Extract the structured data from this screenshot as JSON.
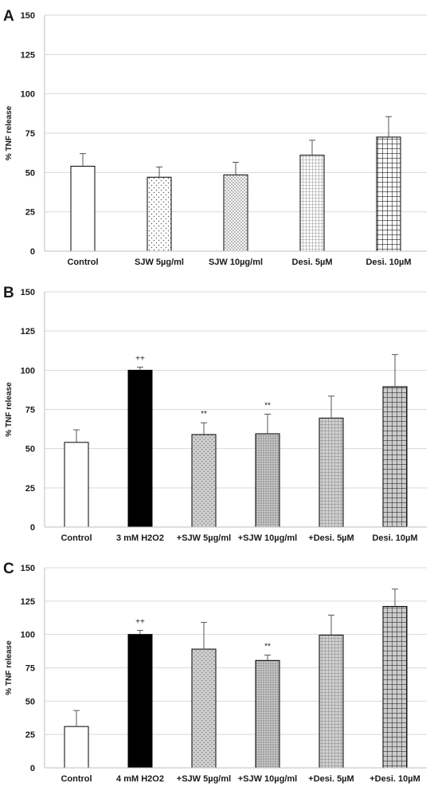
{
  "chart_data": [
    {
      "type": "bar",
      "panel_label": "A",
      "ylabel": "% TNF release",
      "ylim": [
        0,
        150
      ],
      "yticks": [
        "0",
        "25",
        "50",
        "75",
        "100",
        "125",
        "150"
      ],
      "grid": true,
      "categories": [
        "Control",
        "SJW 5µg/ml",
        "SJW 10µg/ml",
        "Desi. 5µM",
        "Desi. 10µM"
      ],
      "values": [
        54,
        47,
        48.5,
        61,
        72.5
      ],
      "errors": [
        8,
        6.5,
        8,
        9.5,
        13
      ],
      "patterns": [
        "white",
        "sparse-dots",
        "dense-dots",
        "grid-small",
        "grid-large"
      ],
      "annotations": [
        "",
        "",
        "",
        "",
        ""
      ]
    },
    {
      "type": "bar",
      "panel_label": "B",
      "ylabel": "% TNF release",
      "ylim": [
        0,
        150
      ],
      "yticks": [
        "0",
        "25",
        "50",
        "75",
        "100",
        "125",
        "150"
      ],
      "grid": true,
      "categories": [
        "Control",
        "3 mM H2O2",
        "+SJW 5µg/ml",
        "+SJW 10µg/ml",
        "+Desi. 5µM",
        "Desi. 10µM"
      ],
      "values": [
        54,
        100,
        59,
        59.5,
        69.5,
        89.5
      ],
      "errors": [
        8,
        2,
        7.5,
        12.5,
        14,
        20.5
      ],
      "patterns": [
        "white",
        "black",
        "gray-dots",
        "gray-dots-dense",
        "gray-grid-small",
        "gray-grid-large"
      ],
      "annotations": [
        "",
        "++",
        "**",
        "**",
        "",
        ""
      ]
    },
    {
      "type": "bar",
      "panel_label": "C",
      "ylabel": "% TNF release",
      "ylim": [
        0,
        150
      ],
      "yticks": [
        "0",
        "25",
        "50",
        "75",
        "100",
        "125",
        "150"
      ],
      "grid": true,
      "categories": [
        "Control",
        "4 mM H2O2",
        "+SJW 5µg/ml",
        "+SJW 10µg/ml",
        "+Desi. 5µM",
        "+Desi. 10µM"
      ],
      "values": [
        31,
        100,
        89,
        80.5,
        99.5,
        121
      ],
      "errors": [
        12,
        3,
        20,
        4,
        15,
        13
      ],
      "patterns": [
        "white",
        "black",
        "gray-dots",
        "gray-dots-dense",
        "gray-grid-small",
        "gray-grid-large"
      ],
      "annotations": [
        "",
        "++",
        "",
        "**",
        "",
        ""
      ]
    }
  ]
}
